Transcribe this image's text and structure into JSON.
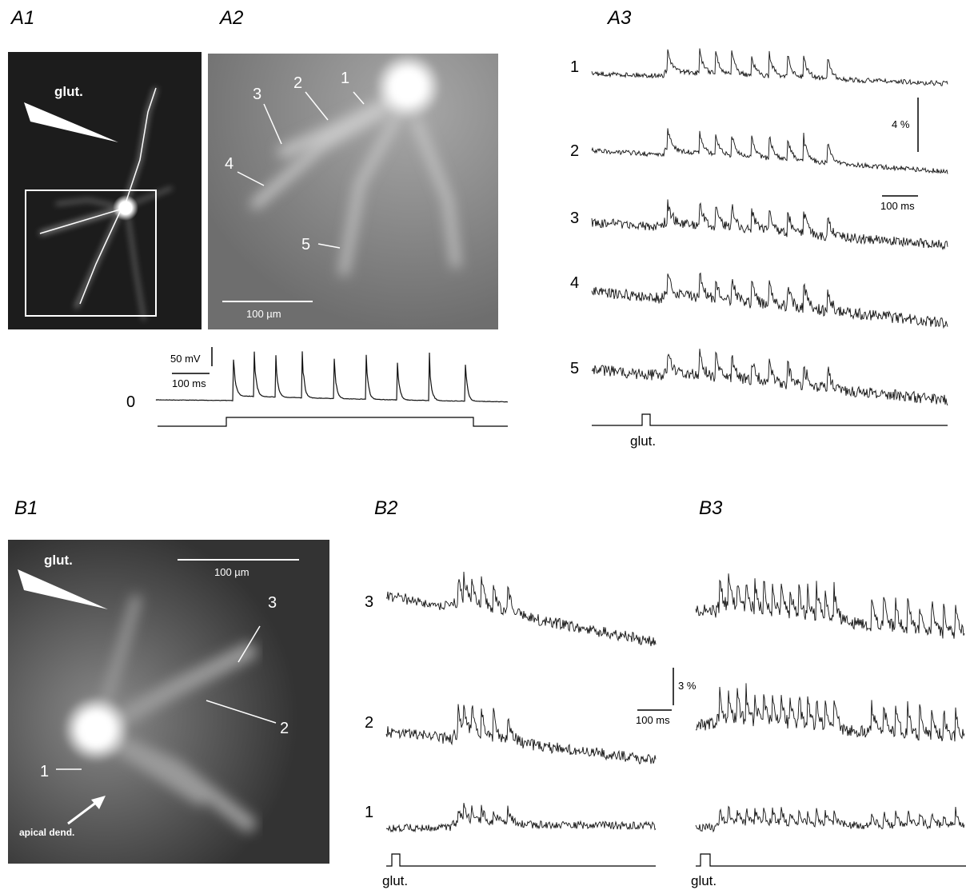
{
  "panels": {
    "A1": {
      "label": "A1",
      "pipette_label": "glut."
    },
    "A2": {
      "label": "A2",
      "site_labels": [
        "1",
        "2",
        "3",
        "4",
        "5"
      ],
      "scale_bar": "100 µm"
    },
    "A_voltage": {
      "trace_label": "0",
      "voltage_scale": "50 mV",
      "time_scale": "100 ms"
    },
    "A3": {
      "label": "A3",
      "trace_labels": [
        "1",
        "2",
        "3",
        "4",
        "5"
      ],
      "amplitude_scale": "4 %",
      "time_scale": "100 ms",
      "stimulus_label": "glut."
    },
    "B1": {
      "label": "B1",
      "pipette_label": "glut.",
      "scale_bar": "100 µm",
      "site_labels": [
        "1",
        "2",
        "3"
      ],
      "arrow_label": "apical dend."
    },
    "B2": {
      "label": "B2",
      "trace_labels": [
        "3",
        "2",
        "1"
      ],
      "amplitude_scale": "3 %",
      "time_scale": "100 ms",
      "stimulus_label": "glut."
    },
    "B3": {
      "label": "B3",
      "stimulus_label": "glut."
    }
  }
}
